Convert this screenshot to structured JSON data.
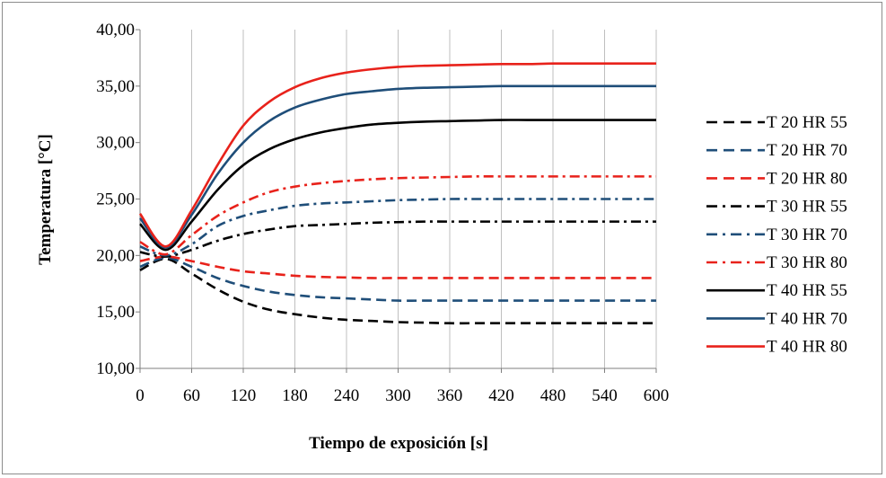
{
  "chart_data": {
    "type": "line",
    "xlabel": "Tiempo de exposición [s]",
    "ylabel": "Temperatura  [°C]",
    "xlim": [
      0,
      600
    ],
    "ylim": [
      10,
      40
    ],
    "x_ticks": [
      0,
      60,
      120,
      180,
      240,
      300,
      360,
      420,
      480,
      540,
      600
    ],
    "x_tick_labels": [
      "0",
      "60",
      "120",
      "180",
      "240",
      "300",
      "360",
      "420",
      "480",
      "540",
      "600"
    ],
    "y_ticks": [
      10,
      15,
      20,
      25,
      30,
      35,
      40
    ],
    "y_tick_labels": [
      "10,00",
      "15,00",
      "20,00",
      "25,00",
      "30,00",
      "35,00",
      "40,00"
    ],
    "grid": "vertical",
    "legend_position": "right",
    "x": [
      0,
      30,
      60,
      90,
      120,
      150,
      180,
      210,
      240,
      270,
      300,
      330,
      360,
      390,
      420,
      450,
      480,
      510,
      540,
      570,
      600
    ],
    "series": [
      {
        "name": "T 20 HR 55",
        "color": "#000000",
        "dash": "dashed",
        "values": [
          18.7,
          19.7,
          18.4,
          17.0,
          15.9,
          15.2,
          14.8,
          14.5,
          14.3,
          14.2,
          14.1,
          14.05,
          14.0,
          14.0,
          14.0,
          14.0,
          14.0,
          14.0,
          14.0,
          14.0,
          14.0
        ]
      },
      {
        "name": "T 20 HR 70",
        "color": "#1f4e79",
        "dash": "dashed",
        "values": [
          19.0,
          19.8,
          19.0,
          18.0,
          17.3,
          16.8,
          16.5,
          16.3,
          16.2,
          16.1,
          16.0,
          16.0,
          16.0,
          16.0,
          16.0,
          16.0,
          16.0,
          16.0,
          16.0,
          16.0,
          16.0
        ]
      },
      {
        "name": "T 20 HR 80",
        "color": "#e8221b",
        "dash": "dashed",
        "values": [
          19.5,
          19.9,
          19.5,
          19.0,
          18.6,
          18.4,
          18.2,
          18.1,
          18.05,
          18.0,
          18.0,
          18.0,
          18.0,
          18.0,
          18.0,
          18.0,
          18.0,
          18.0,
          18.0,
          18.0,
          18.0
        ]
      },
      {
        "name": "T 30 HR 55",
        "color": "#000000",
        "dash": "dashdot",
        "values": [
          20.3,
          19.9,
          20.5,
          21.3,
          21.9,
          22.3,
          22.6,
          22.7,
          22.8,
          22.9,
          22.95,
          23.0,
          23.0,
          23.0,
          23.0,
          23.0,
          23.0,
          23.0,
          23.0,
          23.0,
          23.0
        ]
      },
      {
        "name": "T 30 HR 70",
        "color": "#1f4e79",
        "dash": "dashdot",
        "values": [
          20.8,
          20.0,
          21.0,
          22.6,
          23.5,
          24.0,
          24.4,
          24.6,
          24.7,
          24.8,
          24.9,
          24.95,
          25.0,
          25.0,
          25.0,
          25.0,
          25.0,
          25.0,
          25.0,
          25.0,
          25.0
        ]
      },
      {
        "name": "T 30 HR 80",
        "color": "#e8221b",
        "dash": "dashdot",
        "values": [
          21.2,
          20.1,
          21.8,
          23.5,
          24.7,
          25.6,
          26.1,
          26.4,
          26.6,
          26.75,
          26.85,
          26.9,
          26.95,
          27.0,
          27.0,
          27.0,
          27.0,
          27.0,
          27.0,
          27.0,
          27.0
        ]
      },
      {
        "name": "T 40 HR 55",
        "color": "#000000",
        "dash": "solid",
        "values": [
          22.8,
          20.5,
          23.0,
          25.8,
          28.0,
          29.4,
          30.3,
          30.9,
          31.3,
          31.6,
          31.75,
          31.85,
          31.9,
          31.95,
          32.0,
          32.0,
          32.0,
          32.0,
          32.0,
          32.0,
          32.0
        ]
      },
      {
        "name": "T 40 HR 70",
        "color": "#1f4e79",
        "dash": "solid",
        "values": [
          23.3,
          20.7,
          23.6,
          27.2,
          30.0,
          31.9,
          33.1,
          33.8,
          34.3,
          34.55,
          34.75,
          34.85,
          34.9,
          34.95,
          35.0,
          35.0,
          35.0,
          35.0,
          35.0,
          35.0,
          35.0
        ]
      },
      {
        "name": "T 40 HR 80",
        "color": "#e8221b",
        "dash": "solid",
        "values": [
          23.7,
          20.8,
          24.0,
          28.0,
          31.5,
          33.6,
          34.9,
          35.7,
          36.2,
          36.5,
          36.7,
          36.8,
          36.85,
          36.9,
          36.95,
          36.95,
          37.0,
          37.0,
          37.0,
          37.0,
          37.0
        ]
      }
    ]
  }
}
